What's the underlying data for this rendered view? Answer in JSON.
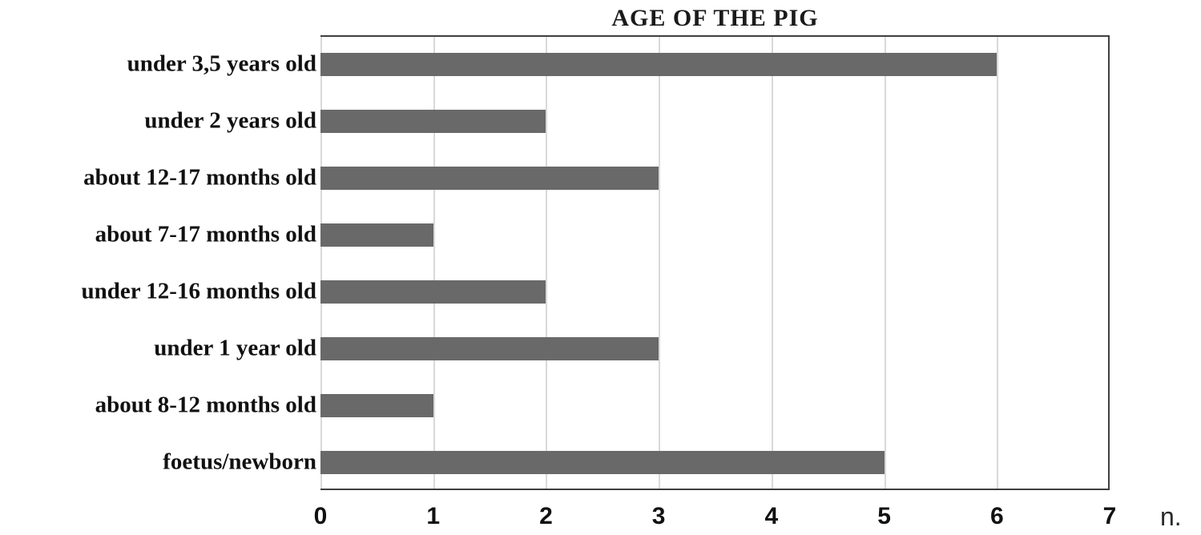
{
  "chart_data": {
    "type": "bar",
    "orientation": "horizontal",
    "title": "AGE OF THE PIG",
    "categories": [
      "under 3,5 years old",
      "under 2 years old",
      "about 12-17 months old",
      "about 7-17 months old",
      "under 12-16 months old",
      "under 1 year old",
      "about 8-12 months old",
      "foetus/newborn"
    ],
    "values": [
      6,
      2,
      3,
      1,
      2,
      3,
      1,
      5
    ],
    "xlabel": "n.",
    "xlim": [
      0,
      7
    ],
    "xticks": [
      0,
      1,
      2,
      3,
      4,
      5,
      6,
      7
    ],
    "grid": true,
    "legend": "none",
    "bar_color": "#696969",
    "gridline_color": "#d9d9d9",
    "border_color": "#3f3f3f"
  }
}
